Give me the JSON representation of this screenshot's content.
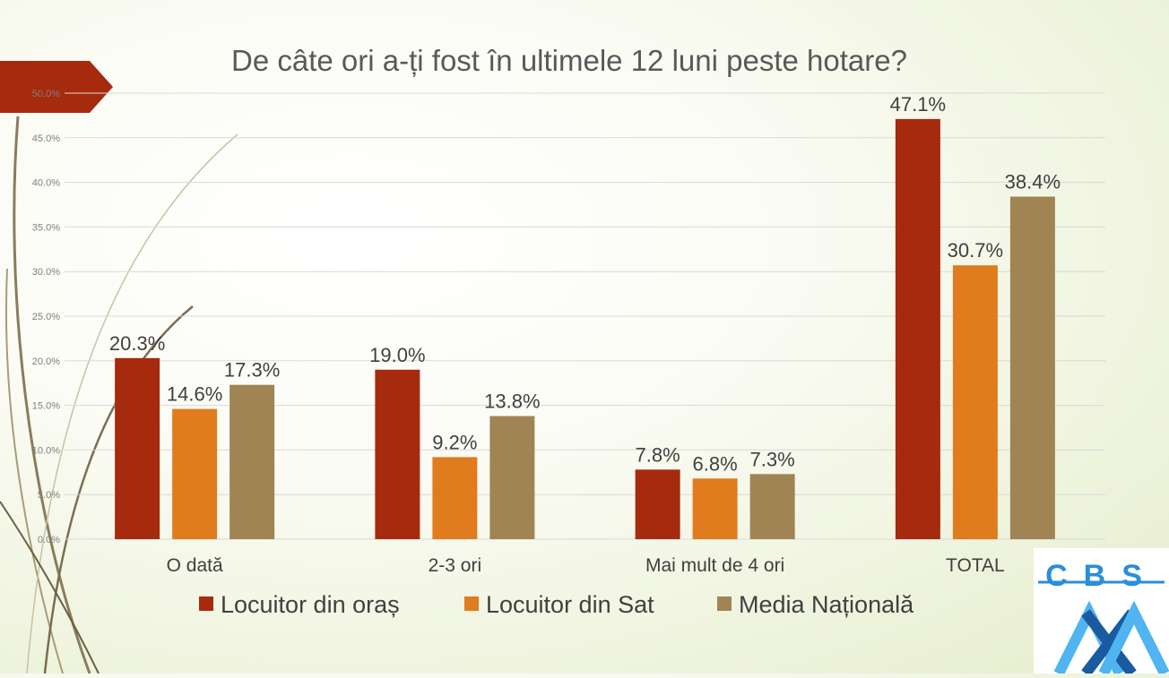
{
  "chart_data": {
    "type": "bar",
    "title": "De câte ori a-ți fost în ultimele 12 luni peste hotare?",
    "categories": [
      "O dată",
      "2-3 ori",
      "Mai mult de 4 ori",
      "TOTAL"
    ],
    "series": [
      {
        "name": "Locuitor din oraș",
        "color": "#a52a0e",
        "values": [
          20.3,
          19.0,
          7.8,
          47.1
        ],
        "labels": [
          "20.3%",
          "19.0%",
          "7.8%",
          "47.1%"
        ]
      },
      {
        "name": "Locuitor din Sat",
        "color": "#e07b1e",
        "values": [
          14.6,
          9.2,
          6.8,
          30.7
        ],
        "labels": [
          "14.6%",
          "9.2%",
          "6.8%",
          "30.7%"
        ]
      },
      {
        "name": "Media Națională",
        "color": "#a08453",
        "values": [
          17.3,
          13.8,
          7.3,
          38.4
        ],
        "labels": [
          "17.3%",
          "13.8%",
          "7.3%",
          "38.4%"
        ]
      }
    ],
    "ylim": [
      0,
      50
    ],
    "yticks": [
      "0.0%",
      "5.0%",
      "10.0%",
      "15.0%",
      "20.0%",
      "25.0%",
      "30.0%",
      "35.0%",
      "40.0%",
      "45.0%",
      "50.0%"
    ],
    "grid": true,
    "legend_position": "bottom"
  },
  "logo": {
    "text": "CBS AXA",
    "colors": {
      "cbs": "#2b8ed8",
      "axa_light": "#4fb4f0",
      "axa_dark": "#1a5aa0"
    }
  },
  "accent": {
    "arrow_color": "#a52a0e"
  }
}
